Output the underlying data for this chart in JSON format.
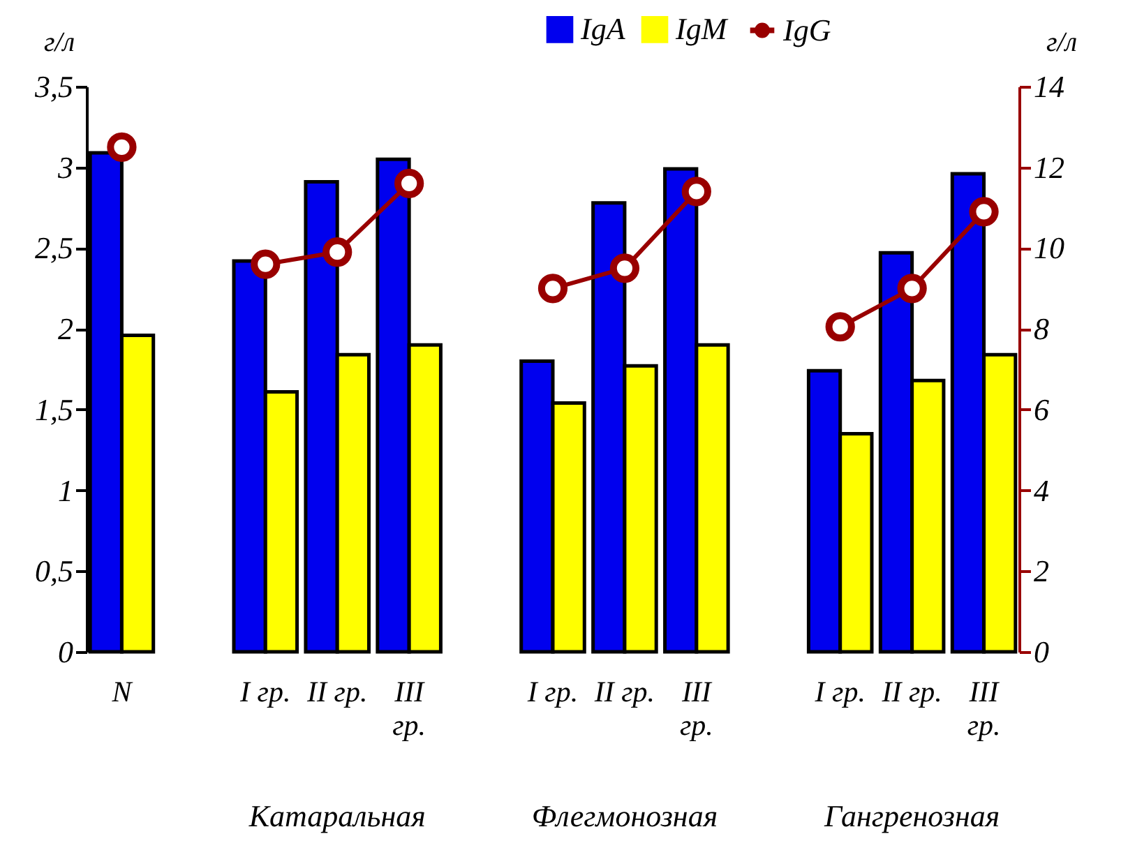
{
  "chart_data": {
    "type": "bar",
    "ylabel": "г/л",
    "y2label": "г/л",
    "categories": [
      "N",
      null,
      "I гр.",
      "II гр.",
      "III гр.",
      null,
      "I гр.",
      "II гр.",
      "III гр.",
      null,
      "I гр.",
      "II гр.",
      "III гр."
    ],
    "series": [
      {
        "name": "IgA",
        "color": "#0000ee",
        "values": [
          3.09,
          null,
          2.42,
          2.91,
          3.05,
          null,
          1.8,
          2.78,
          2.99,
          null,
          1.74,
          2.47,
          2.96
        ]
      },
      {
        "name": "IgM",
        "color": "#ffff00",
        "values": [
          1.96,
          null,
          1.61,
          1.84,
          1.9,
          null,
          1.54,
          1.77,
          1.9,
          null,
          1.35,
          1.68,
          1.84
        ]
      },
      {
        "name": "IgG",
        "color": "#990000",
        "type": "line",
        "axis": "y2",
        "marker": "circle",
        "values": [
          12.5,
          null,
          9.6,
          9.9,
          11.6,
          null,
          9.0,
          9.5,
          11.4,
          null,
          8.05,
          9.0,
          10.9
        ]
      }
    ],
    "ylim": [
      0,
      3.5
    ],
    "yticks": [
      0,
      {
        "value": 0.5,
        "label": "0,5"
      },
      1,
      {
        "value": 1.5,
        "label": "1,5"
      },
      2,
      {
        "value": 2.5,
        "label": "2,5"
      },
      3,
      {
        "value": 3.5,
        "label": "3,5"
      }
    ],
    "y2lim": [
      0,
      14
    ],
    "y2ticks": [
      0,
      2,
      4,
      6,
      8,
      10,
      12,
      14
    ],
    "annotations": [
      "Катаральная",
      "Флегмонозная",
      "Гангренозная"
    ],
    "legend": "top right",
    "grid": false
  }
}
